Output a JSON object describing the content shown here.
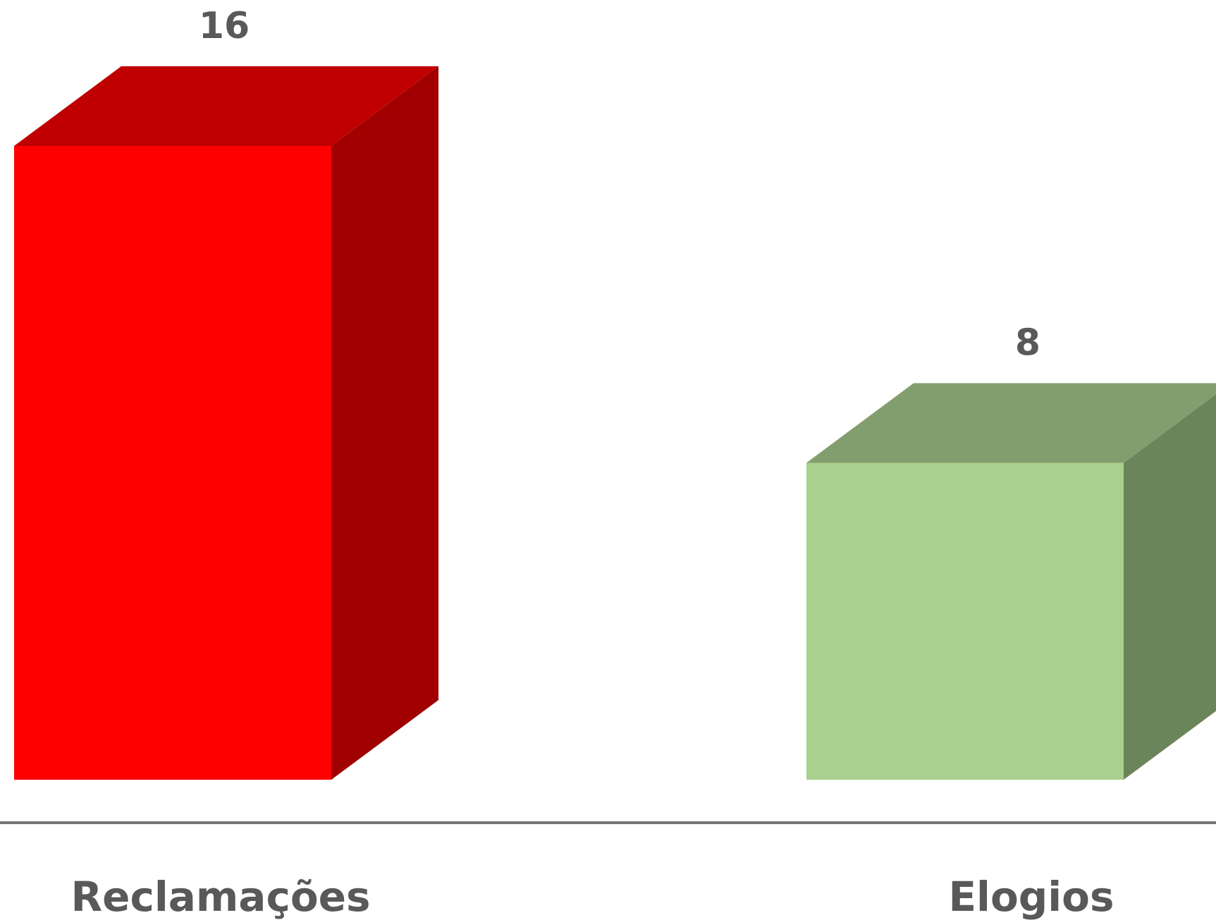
{
  "chart_data": {
    "type": "bar",
    "categories": [
      "Reclamações",
      "Elogios"
    ],
    "values": [
      16,
      8
    ],
    "value_labels": [
      "16",
      "8"
    ],
    "title": "",
    "xlabel": "",
    "ylabel": "",
    "ylim": [
      0,
      16
    ],
    "grid": false,
    "legend": "none",
    "colors": [
      {
        "front": "#ff0000",
        "top": "#c00000",
        "side": "#a00000"
      },
      {
        "front": "#a9d08e",
        "top": "#829e6e",
        "side": "#6b855b"
      }
    ],
    "axis_color": "#767676"
  }
}
